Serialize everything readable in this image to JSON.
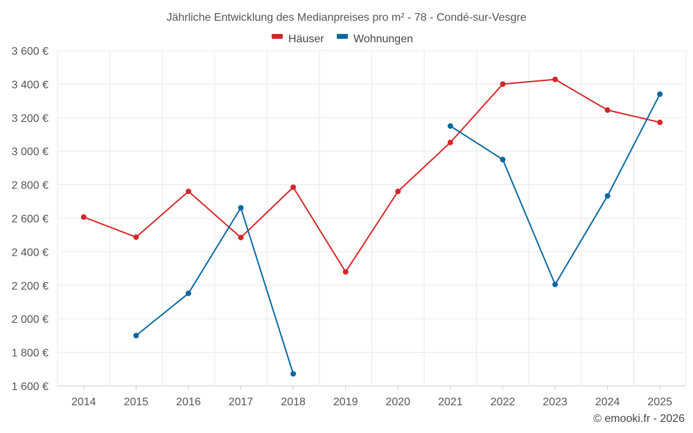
{
  "chart_data": {
    "type": "line",
    "title": "Jährliche Entwicklung des Medianpreises pro m² - 78 - Condé-sur-Vesgre",
    "categories": [
      "2014",
      "2015",
      "2016",
      "2017",
      "2018",
      "2019",
      "2020",
      "2021",
      "2022",
      "2023",
      "2024",
      "2025"
    ],
    "series": [
      {
        "name": "Häuser",
        "color": "#d62728",
        "values": [
          2607,
          2487,
          2760,
          2485,
          2785,
          2280,
          2760,
          3052,
          3400,
          3428,
          3245,
          3172
        ]
      },
      {
        "name": "Wohnungen",
        "color": "#0868a0",
        "values": [
          null,
          1900,
          2152,
          2662,
          1672,
          null,
          null,
          3150,
          2950,
          2205,
          2733,
          3340
        ]
      }
    ],
    "ylim": [
      1600,
      3600
    ],
    "yticks": [
      1600,
      1800,
      2000,
      2200,
      2400,
      2600,
      2800,
      3000,
      3200,
      3400,
      3600
    ],
    "ytick_labels": [
      "1 600 €",
      "1 800 €",
      "2 000 €",
      "2 200 €",
      "2 400 €",
      "2 600 €",
      "2 800 €",
      "3 000 €",
      "3 200 €",
      "3 400 €",
      "3 600 €"
    ],
    "xlabel": "",
    "ylabel": "",
    "grid": true,
    "legend_position": "top-center"
  },
  "credit": "© emooki.fr - 2026"
}
